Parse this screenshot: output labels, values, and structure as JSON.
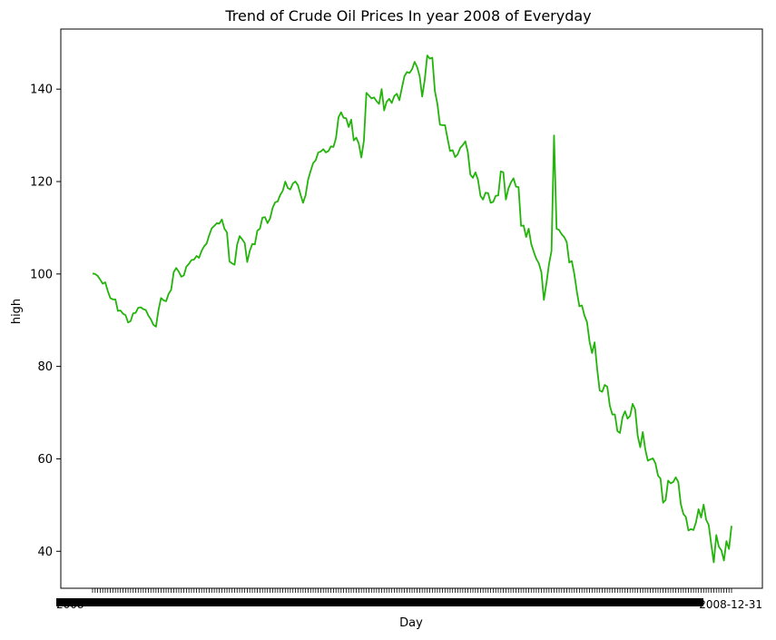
{
  "chart_data": {
    "type": "line",
    "title": "Trend of Crude Oil Prices In year 2008 of Everyday",
    "xlabel": "Day",
    "ylabel": "high",
    "ylim": [
      32,
      153
    ],
    "yticks": [
      40,
      60,
      80,
      100,
      120,
      140
    ],
    "grid": false,
    "x_ticks_note": "one dense tick per trading day of 2008; labels overlap and are illegible",
    "x_tick_label_start": "2008",
    "x_tick_label_end": "2008-12-31",
    "colors": {
      "line": "#22b40a",
      "axes": "#000000"
    },
    "series": [
      {
        "values": [
          100.1,
          100.0,
          99.6,
          98.8,
          97.9,
          98.2,
          96.3,
          94.8,
          94.5,
          94.5,
          92.0,
          92.1,
          91.4,
          91.1,
          89.5,
          89.8,
          91.5,
          91.6,
          92.7,
          92.8,
          92.4,
          92.2,
          91.0,
          90.2,
          89.0,
          88.6,
          92.2,
          94.8,
          94.3,
          94.1,
          95.7,
          96.6,
          100.4,
          101.3,
          100.5,
          99.4,
          99.7,
          101.6,
          102.2,
          103.0,
          103.1,
          103.9,
          103.5,
          105.0,
          106.0,
          106.6,
          108.4,
          109.9,
          110.4,
          111.0,
          110.9,
          111.8,
          109.8,
          109.0,
          102.7,
          102.3,
          102.0,
          106.3,
          108.2,
          107.5,
          106.7,
          102.6,
          105.0,
          106.5,
          106.4,
          109.4,
          109.8,
          112.2,
          112.3,
          111.0,
          112.0,
          114.3,
          115.5,
          115.7,
          117.1,
          118.0,
          120.0,
          118.6,
          118.3,
          119.6,
          120.0,
          119.2,
          117.2,
          115.4,
          117.0,
          120.4,
          122.3,
          124.0,
          124.6,
          126.3,
          126.5,
          127.0,
          126.3,
          126.6,
          127.6,
          127.5,
          129.4,
          133.9,
          135.0,
          133.8,
          133.7,
          131.8,
          133.4,
          128.9,
          129.5,
          128.2,
          125.2,
          128.8,
          139.2,
          138.6,
          138.0,
          138.2,
          137.4,
          136.8,
          140.0,
          135.4,
          137.3,
          137.9,
          137.0,
          138.5,
          139.0,
          137.6,
          140.3,
          142.8,
          143.7,
          143.5,
          144.3,
          145.9,
          144.8,
          142.8,
          138.4,
          142.0,
          147.3,
          146.6,
          146.8,
          139.6,
          136.8,
          132.3,
          132.2,
          132.2,
          129.3,
          126.6,
          126.8,
          125.3,
          125.9,
          127.3,
          127.9,
          128.7,
          126.4,
          121.5,
          120.8,
          122.0,
          120.4,
          116.9,
          116.1,
          117.6,
          117.5,
          115.4,
          115.6,
          116.9,
          117.0,
          122.2,
          122.0,
          116.1,
          118.5,
          119.8,
          120.7,
          118.9,
          118.8,
          110.4,
          110.5,
          108.0,
          109.8,
          106.5,
          104.8,
          103.3,
          102.3,
          100.4,
          94.4,
          98.0,
          102.1,
          105.0,
          130.0,
          109.8,
          109.5,
          108.6,
          108.0,
          106.9,
          102.5,
          102.8,
          100.0,
          96.2,
          93.0,
          93.2,
          91.0,
          89.6,
          85.4,
          82.9,
          85.2,
          79.5,
          74.8,
          74.5,
          76.0,
          75.6,
          71.5,
          69.6,
          69.6,
          66.0,
          65.6,
          69.0,
          70.3,
          68.7,
          69.3,
          71.9,
          70.7,
          65.0,
          62.5,
          65.8,
          62.0,
          59.6,
          59.9,
          60.1,
          59.0,
          56.4,
          55.7,
          50.5,
          51.1,
          55.3,
          54.7,
          55.0,
          56.0,
          55.0,
          50.2,
          48.1,
          47.4,
          44.5,
          44.8,
          44.6,
          46.3,
          49.1,
          47.3,
          50.1,
          46.8,
          45.7,
          41.5,
          37.6,
          43.5,
          41.0,
          40.2,
          38.0,
          42.2,
          40.5,
          45.5
        ]
      }
    ]
  }
}
